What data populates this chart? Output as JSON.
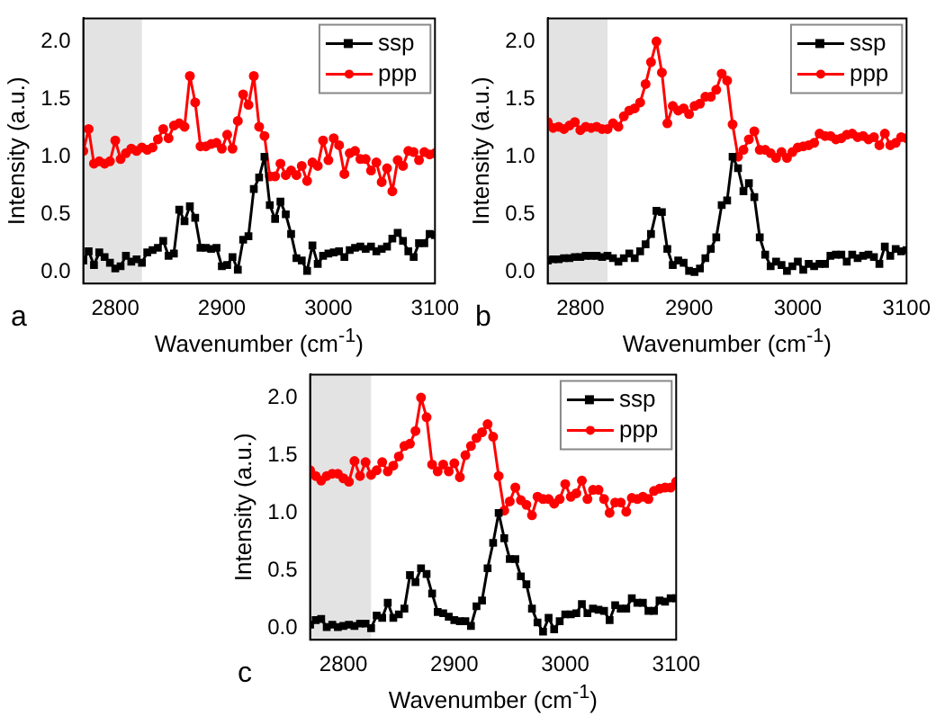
{
  "chart_data": [
    {
      "type": "line",
      "xlabel": "Wavenumber (cm$^{-1}$)",
      "ylabel": "Intensity (a.u.)",
      "annotations": [
        "a"
      ],
      "legend": "top right",
      "xlim": [
        2770,
        3100
      ],
      "xticks": [
        2800,
        2900,
        3000,
        3100
      ],
      "ylim": [
        -0.1,
        2.2
      ],
      "yticks": [
        {
          "value": 0,
          "label": "0.0"
        },
        {
          "value": 0.5,
          "label": "0.5"
        },
        {
          "value": 1,
          "label": "1.0"
        },
        {
          "value": 1.5,
          "label": "1.5"
        },
        {
          "value": 2,
          "label": "2.0"
        }
      ],
      "bands": [
        {
          "axis": "x",
          "from": 2770,
          "to": 2825,
          "color": "#c8c8c8"
        }
      ],
      "x": [
        2770,
        2775,
        2780,
        2785,
        2790,
        2795,
        2800,
        2805,
        2810,
        2815,
        2820,
        2825,
        2830,
        2835,
        2840,
        2845,
        2850,
        2855,
        2860,
        2865,
        2870,
        2875,
        2880,
        2885,
        2890,
        2895,
        2900,
        2905,
        2910,
        2915,
        2920,
        2925,
        2930,
        2935,
        2940,
        2945,
        2950,
        2955,
        2960,
        2965,
        2970,
        2975,
        2980,
        2985,
        2990,
        2995,
        3000,
        3005,
        3010,
        3015,
        3020,
        3025,
        3030,
        3035,
        3040,
        3045,
        3050,
        3055,
        3060,
        3065,
        3070,
        3075,
        3080,
        3085,
        3090,
        3095,
        3100
      ],
      "series": [
        {
          "name": "ssp",
          "color": "#000000",
          "marker": "square",
          "values": [
            0.1,
            0.18,
            0.06,
            0.17,
            0.13,
            0.08,
            0.03,
            0.05,
            0.14,
            0.09,
            0.11,
            0.08,
            0.17,
            0.19,
            0.21,
            0.27,
            0.14,
            0.16,
            0.54,
            0.44,
            0.57,
            0.47,
            0.21,
            0.21,
            0.2,
            0.21,
            0.05,
            0.06,
            0.13,
            0.02,
            0.28,
            0.31,
            0.72,
            0.82,
            1.0,
            0.58,
            0.46,
            0.61,
            0.5,
            0.33,
            0.12,
            0.1,
            0.01,
            0.23,
            0.07,
            0.14,
            0.16,
            0.17,
            0.18,
            0.13,
            0.19,
            0.21,
            0.22,
            0.2,
            0.22,
            0.18,
            0.2,
            0.22,
            0.29,
            0.34,
            0.27,
            0.18,
            0.13,
            0.25,
            0.25,
            0.33,
            0.32
          ]
        },
        {
          "name": "ppp",
          "color": "#ff0000",
          "marker": "circle",
          "values": [
            1.05,
            1.24,
            0.94,
            0.96,
            0.94,
            0.96,
            1.14,
            0.98,
            1.03,
            1.07,
            1.05,
            1.08,
            1.06,
            1.08,
            1.15,
            1.24,
            1.16,
            1.27,
            1.29,
            1.26,
            1.7,
            1.47,
            1.09,
            1.09,
            1.11,
            1.12,
            1.07,
            1.19,
            1.07,
            1.31,
            1.54,
            1.45,
            1.7,
            1.26,
            1.18,
            0.83,
            0.83,
            0.94,
            0.84,
            0.88,
            0.84,
            0.92,
            0.79,
            0.95,
            0.92,
            1.14,
            0.97,
            1.16,
            1.1,
            0.85,
            1.03,
            1.05,
            0.98,
            0.98,
            0.88,
            0.95,
            0.78,
            0.9,
            0.7,
            0.97,
            0.92,
            1.05,
            1.04,
            0.97,
            1.04,
            1.02,
            1.03
          ]
        }
      ]
    },
    {
      "type": "line",
      "xlabel": "Wavenumber (cm$^{-1}$)",
      "ylabel": "Intensity (a.u.)",
      "annotations": [
        "b"
      ],
      "legend": "top right",
      "xlim": [
        2770,
        3100
      ],
      "xticks": [
        2800,
        2900,
        3000,
        3100
      ],
      "ylim": [
        -0.1,
        2.2
      ],
      "yticks": [
        {
          "value": 0,
          "label": "0.0"
        },
        {
          "value": 0.5,
          "label": "0.5"
        },
        {
          "value": 1,
          "label": "1.0"
        },
        {
          "value": 1.5,
          "label": "1.5"
        },
        {
          "value": 2,
          "label": "2.0"
        }
      ],
      "bands": [
        {
          "axis": "x",
          "from": 2770,
          "to": 2825,
          "color": "#c8c8c8"
        }
      ],
      "x": [
        2770,
        2775,
        2780,
        2785,
        2790,
        2795,
        2800,
        2805,
        2810,
        2815,
        2820,
        2825,
        2830,
        2835,
        2840,
        2845,
        2850,
        2855,
        2860,
        2865,
        2870,
        2875,
        2880,
        2885,
        2890,
        2895,
        2900,
        2905,
        2910,
        2915,
        2920,
        2925,
        2930,
        2935,
        2940,
        2945,
        2950,
        2955,
        2960,
        2965,
        2970,
        2975,
        2980,
        2985,
        2990,
        2995,
        3000,
        3005,
        3010,
        3015,
        3020,
        3025,
        3030,
        3035,
        3040,
        3045,
        3050,
        3055,
        3060,
        3065,
        3070,
        3075,
        3080,
        3085,
        3090,
        3095,
        3100
      ],
      "series": [
        {
          "name": "ssp",
          "color": "#000000",
          "marker": "square",
          "values": [
            0.1,
            0.11,
            0.11,
            0.12,
            0.12,
            0.13,
            0.13,
            0.14,
            0.14,
            0.14,
            0.13,
            0.14,
            0.12,
            0.09,
            0.12,
            0.16,
            0.12,
            0.18,
            0.24,
            0.33,
            0.53,
            0.52,
            0.2,
            0.06,
            0.1,
            0.08,
            0.01,
            0.0,
            0.03,
            0.12,
            0.2,
            0.3,
            0.58,
            0.62,
            1.0,
            0.9,
            0.7,
            0.77,
            0.65,
            0.3,
            0.15,
            0.05,
            0.09,
            0.06,
            0.01,
            0.05,
            0.09,
            0.02,
            0.07,
            0.05,
            0.07,
            0.07,
            0.14,
            0.15,
            0.15,
            0.09,
            0.15,
            0.12,
            0.14,
            0.15,
            0.13,
            0.07,
            0.22,
            0.14,
            0.2,
            0.18,
            0.19
          ]
        },
        {
          "name": "ppp",
          "color": "#ff0000",
          "marker": "circle",
          "values": [
            1.3,
            1.25,
            1.26,
            1.24,
            1.27,
            1.3,
            1.23,
            1.26,
            1.25,
            1.26,
            1.24,
            1.24,
            1.29,
            1.26,
            1.35,
            1.4,
            1.42,
            1.47,
            1.63,
            1.82,
            2.0,
            1.73,
            1.29,
            1.44,
            1.4,
            1.42,
            1.37,
            1.44,
            1.46,
            1.52,
            1.52,
            1.58,
            1.72,
            1.66,
            1.28,
            1.0,
            1.06,
            1.15,
            1.22,
            1.06,
            1.06,
            1.03,
            0.99,
            1.04,
            0.99,
            1.04,
            1.08,
            1.09,
            1.1,
            1.12,
            1.2,
            1.18,
            1.18,
            1.15,
            1.16,
            1.19,
            1.2,
            1.17,
            1.18,
            1.15,
            1.17,
            1.1,
            1.2,
            1.1,
            1.12,
            1.17,
            1.16
          ]
        }
      ]
    },
    {
      "type": "line",
      "xlabel": "Wavenumber (cm$^{-1}$)",
      "ylabel": "Intensity (a.u.)",
      "annotations": [
        "c"
      ],
      "legend": "top right",
      "xlim": [
        2770,
        3100
      ],
      "xticks": [
        2800,
        2900,
        3000,
        3100
      ],
      "ylim": [
        -0.1,
        2.2
      ],
      "yticks": [
        {
          "value": 0,
          "label": "0.0"
        },
        {
          "value": 0.5,
          "label": "0.5"
        },
        {
          "value": 1,
          "label": "1.0"
        },
        {
          "value": 1.5,
          "label": "1.5"
        },
        {
          "value": 2,
          "label": "2.0"
        }
      ],
      "bands": [
        {
          "axis": "x",
          "from": 2770,
          "to": 2825,
          "color": "#c8c8c8"
        }
      ],
      "x": [
        2770,
        2775,
        2780,
        2785,
        2790,
        2795,
        2800,
        2805,
        2810,
        2815,
        2820,
        2825,
        2830,
        2835,
        2840,
        2845,
        2850,
        2855,
        2860,
        2865,
        2870,
        2875,
        2880,
        2885,
        2890,
        2895,
        2900,
        2905,
        2910,
        2915,
        2920,
        2925,
        2930,
        2935,
        2940,
        2945,
        2950,
        2955,
        2960,
        2965,
        2970,
        2975,
        2980,
        2985,
        2990,
        2995,
        3000,
        3005,
        3010,
        3015,
        3020,
        3025,
        3030,
        3035,
        3040,
        3045,
        3050,
        3055,
        3060,
        3065,
        3070,
        3075,
        3080,
        3085,
        3090,
        3095,
        3100
      ],
      "series": [
        {
          "name": "ssp",
          "color": "#000000",
          "marker": "square",
          "values": [
            0.03,
            0.07,
            0.08,
            0.01,
            0.03,
            0.01,
            0.02,
            0.03,
            0.02,
            0.04,
            0.04,
            0.0,
            0.11,
            0.09,
            0.22,
            0.09,
            0.12,
            0.17,
            0.46,
            0.4,
            0.52,
            0.47,
            0.3,
            0.14,
            0.13,
            0.1,
            0.07,
            0.06,
            0.06,
            0.02,
            0.19,
            0.24,
            0.52,
            0.74,
            1.0,
            0.78,
            0.6,
            0.6,
            0.45,
            0.38,
            0.17,
            0.05,
            -0.03,
            0.09,
            -0.01,
            0.06,
            0.12,
            0.12,
            0.13,
            0.21,
            0.13,
            0.17,
            0.16,
            0.15,
            0.07,
            0.2,
            0.17,
            0.17,
            0.26,
            0.22,
            0.22,
            0.15,
            0.15,
            0.24,
            0.23,
            0.26,
            0.26
          ]
        },
        {
          "name": "ppp",
          "color": "#ff0000",
          "marker": "circle",
          "values": [
            1.37,
            1.32,
            1.28,
            1.32,
            1.34,
            1.34,
            1.3,
            1.27,
            1.45,
            1.32,
            1.44,
            1.33,
            1.37,
            1.44,
            1.36,
            1.41,
            1.49,
            1.58,
            1.6,
            1.71,
            2.0,
            1.83,
            1.42,
            1.36,
            1.42,
            1.36,
            1.43,
            1.31,
            1.5,
            1.58,
            1.65,
            1.7,
            1.77,
            1.66,
            1.32,
            1.02,
            1.1,
            1.22,
            1.11,
            1.07,
            0.98,
            1.14,
            1.12,
            1.12,
            1.08,
            1.12,
            1.25,
            1.14,
            1.17,
            1.28,
            1.12,
            1.2,
            1.2,
            1.12,
            1.0,
            1.09,
            1.09,
            1.01,
            1.13,
            1.12,
            1.14,
            1.12,
            1.19,
            1.21,
            1.22,
            1.22,
            1.27
          ]
        }
      ]
    }
  ]
}
